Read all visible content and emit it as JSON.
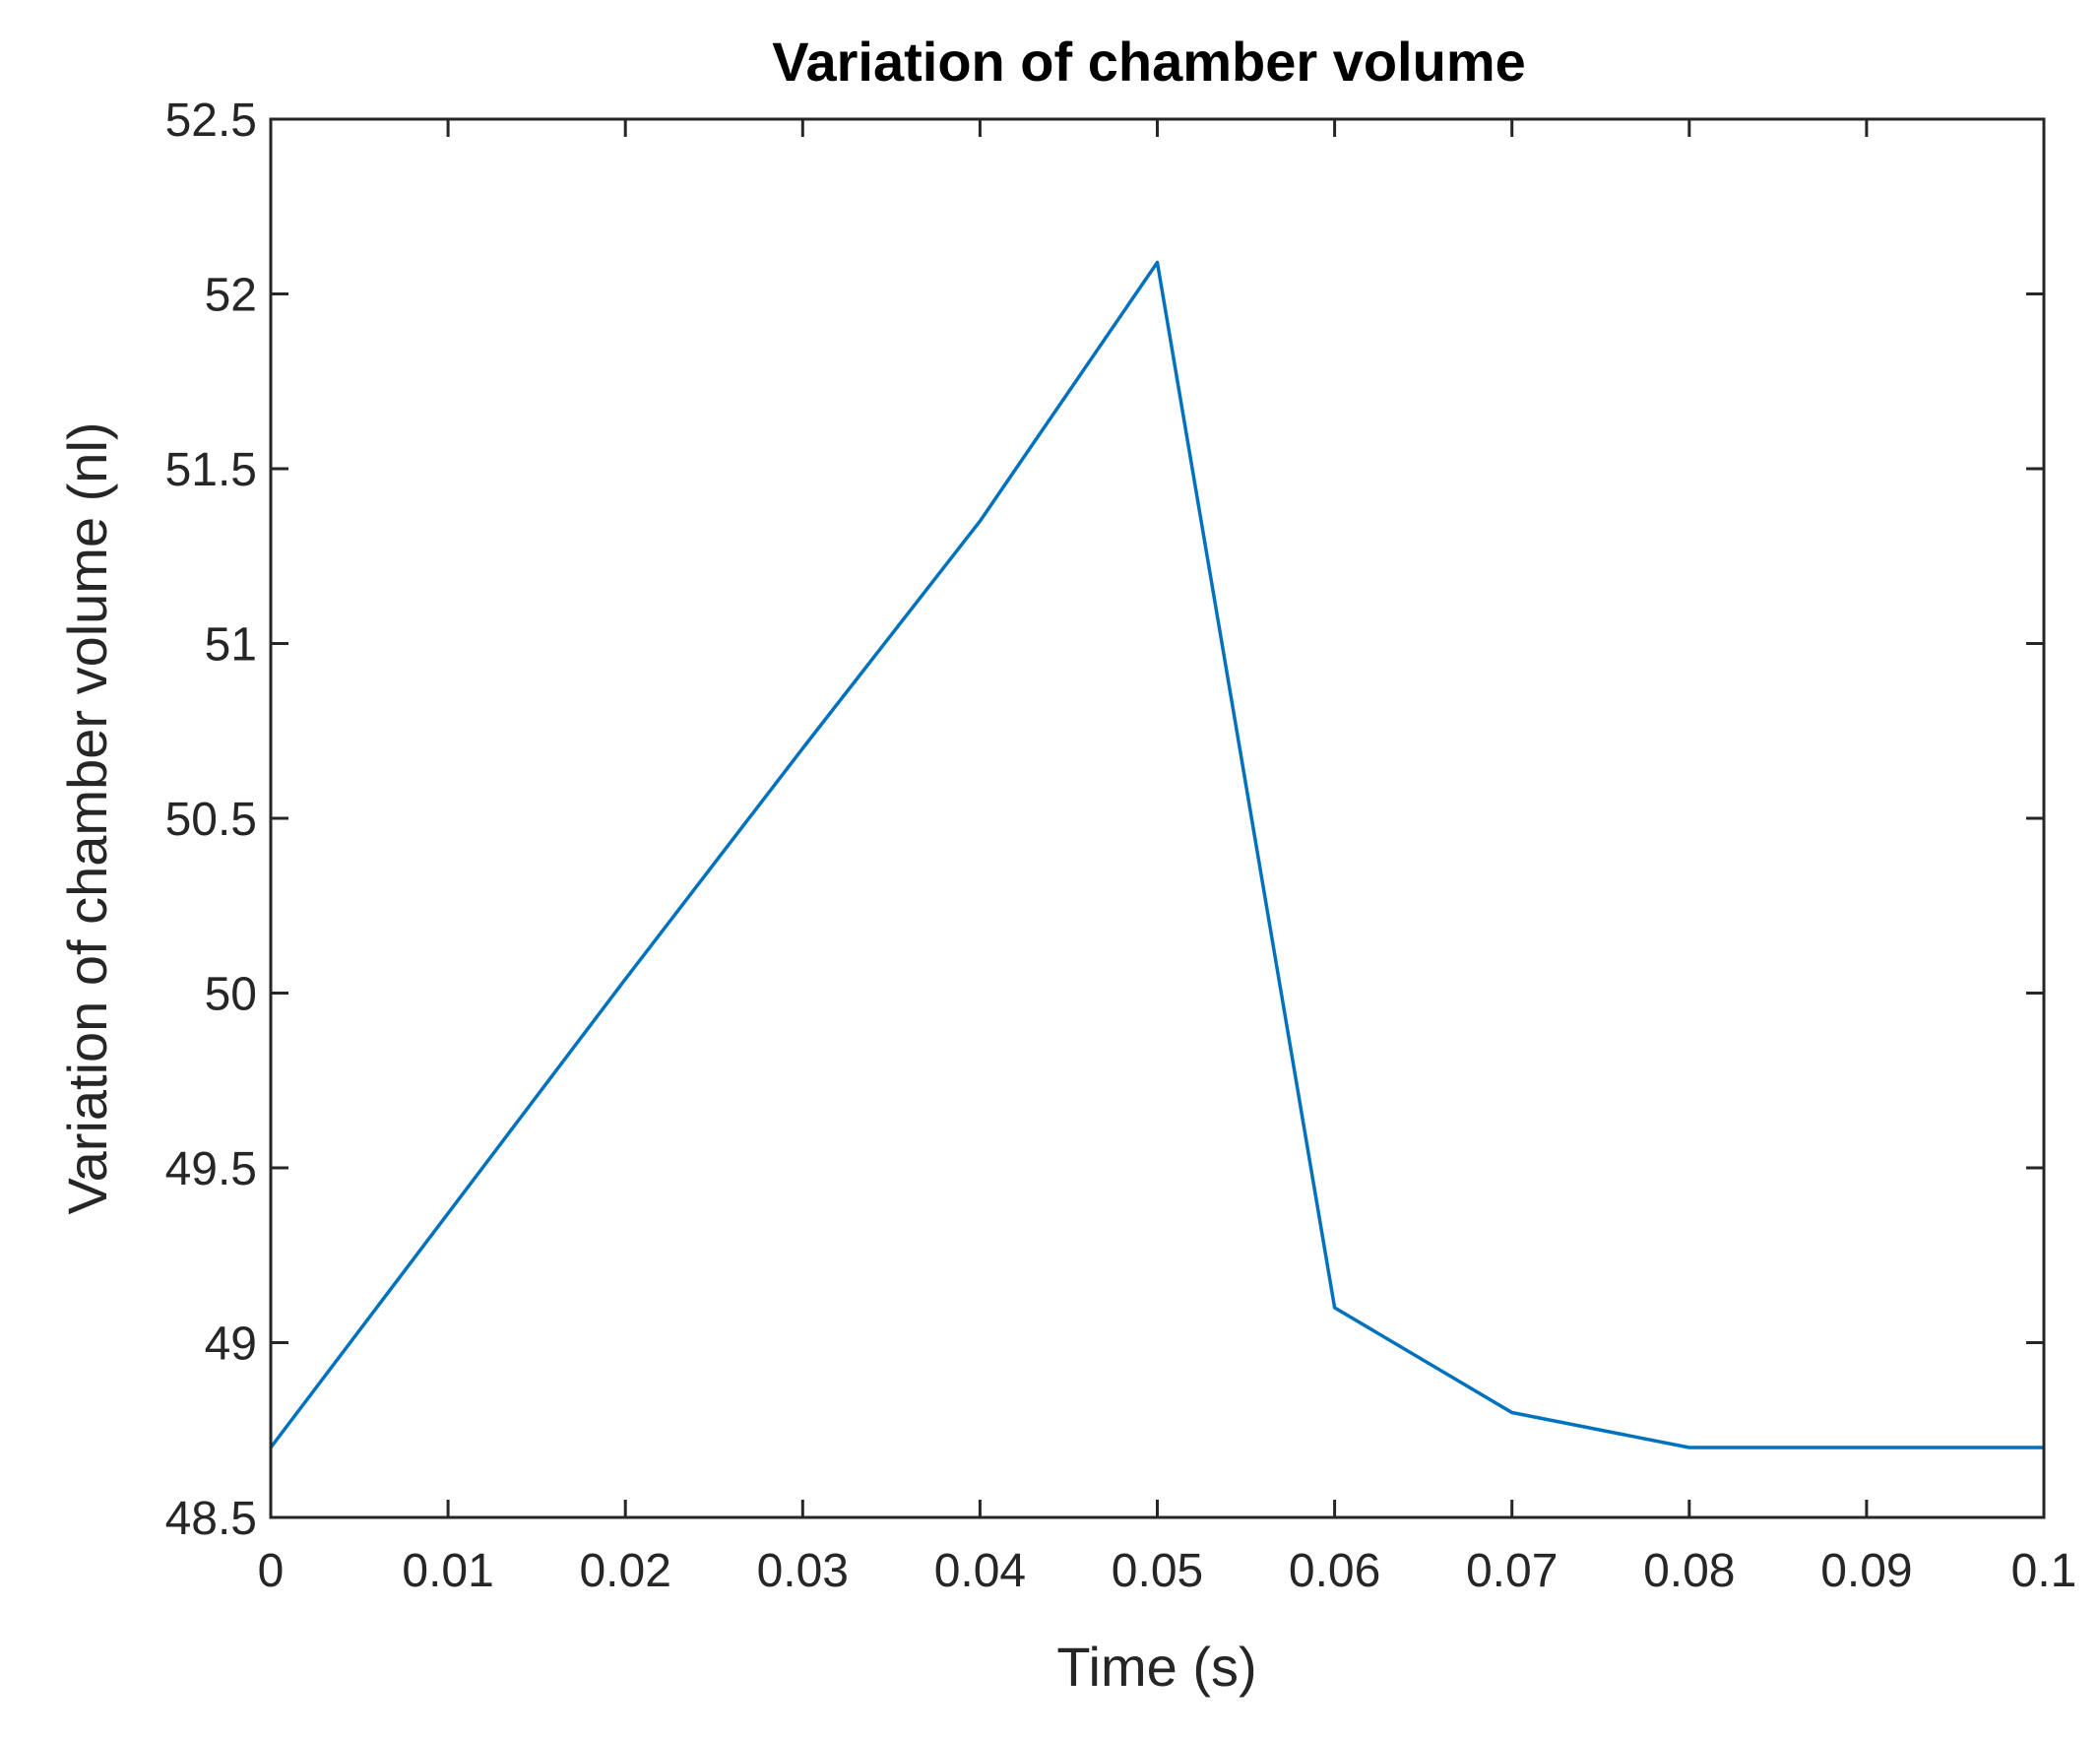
{
  "chart_data": {
    "type": "line",
    "title": "Variation of chamber volume",
    "xlabel": "Time (s)",
    "ylabel": "Variation of chamber volume (nl)",
    "xlim": [
      0,
      0.1
    ],
    "ylim": [
      48.5,
      52.5
    ],
    "xticks": [
      0,
      0.01,
      0.02,
      0.03,
      0.04,
      0.05,
      0.06,
      0.07,
      0.08,
      0.09,
      0.1
    ],
    "xtick_labels": [
      "0",
      "0.01",
      "0.02",
      "0.03",
      "0.04",
      "0.05",
      "0.06",
      "0.07",
      "0.08",
      "0.09",
      "0.1"
    ],
    "yticks": [
      48.5,
      49,
      49.5,
      50,
      50.5,
      51,
      51.5,
      52,
      52.5
    ],
    "ytick_labels": [
      "48.5",
      "49",
      "49.5",
      "50",
      "50.5",
      "51",
      "51.5",
      "52",
      "52.5"
    ],
    "grid": false,
    "series": [
      {
        "color": "#0072bd",
        "x": [
          0,
          0.01,
          0.02,
          0.03,
          0.04,
          0.05,
          0.06,
          0.07,
          0.08,
          0.09,
          0.1
        ],
        "y": [
          48.7,
          49.37,
          50.04,
          50.7,
          51.35,
          52.09,
          49.1,
          48.8,
          48.7,
          48.7,
          48.7
        ]
      }
    ]
  }
}
